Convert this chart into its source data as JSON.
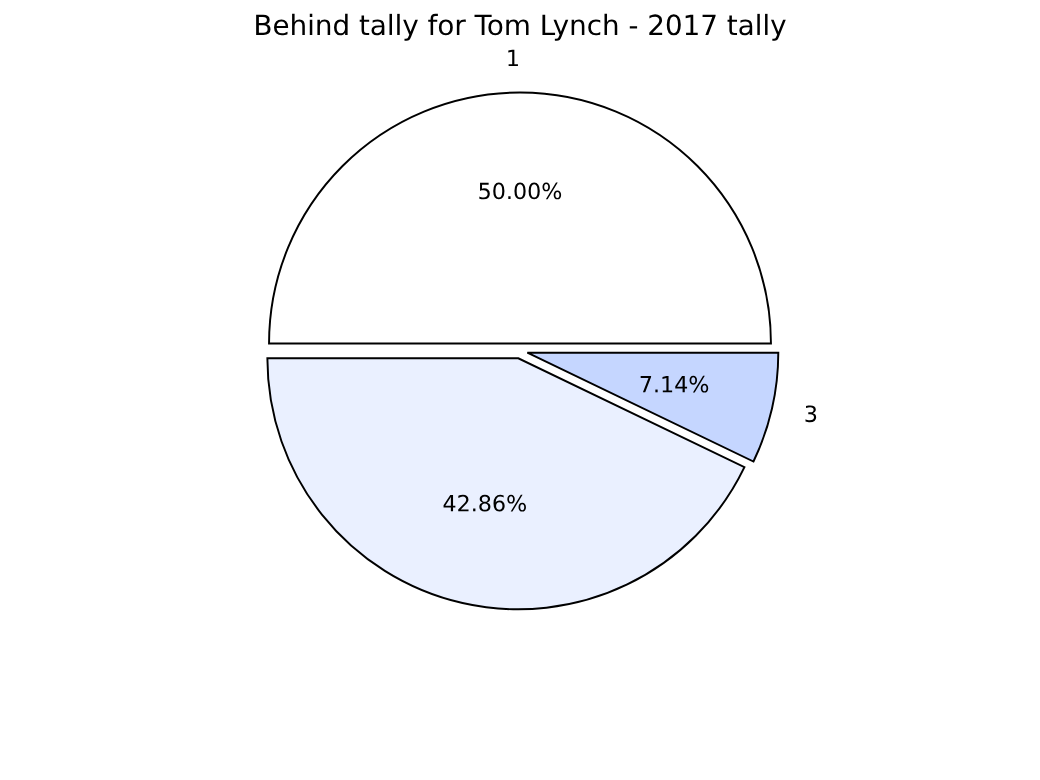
{
  "chart_data": {
    "type": "pie",
    "title": "Behind tally for Tom Lynch - 2017 tally",
    "categories": [
      "1",
      null,
      "3"
    ],
    "values": [
      50.0,
      42.86,
      7.14
    ],
    "value_labels": [
      "50.00%",
      "42.86%",
      "7.14%"
    ],
    "colors": [
      "#ffffff",
      "#eaf0ff",
      "#c5d6ff"
    ],
    "legend": false
  }
}
